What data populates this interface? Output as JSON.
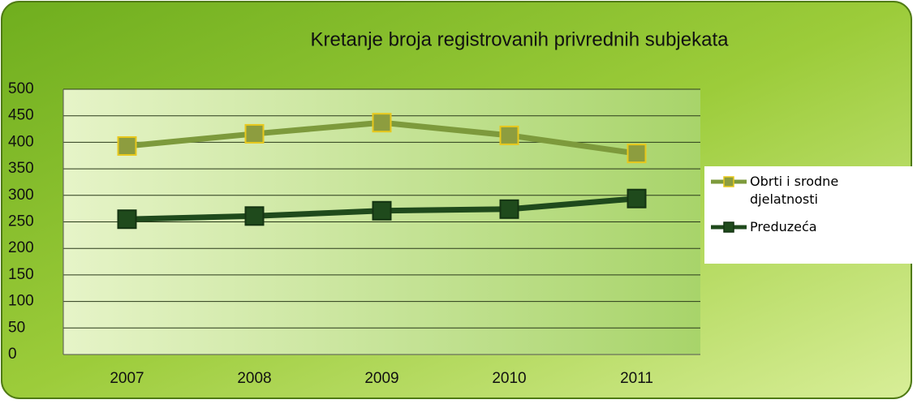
{
  "chart_data": {
    "type": "line",
    "title": "Kretanje broja registrovanih privrednih subjekata",
    "categories": [
      "2007",
      "2008",
      "2009",
      "2010",
      "2011"
    ],
    "series": [
      {
        "name": "Obrti i srodne djelatnosti",
        "color": "#7d9a3c",
        "marker_color": "#8d9d3f",
        "marker_edge": "#e8c81c",
        "values": [
          393,
          416,
          437,
          413,
          379
        ]
      },
      {
        "name": "Preduzeća",
        "color": "#1f4a1c",
        "marker_color": "#1f4a1c",
        "marker_edge": "#143412",
        "values": [
          255,
          261,
          271,
          274,
          294
        ]
      }
    ],
    "ylim": [
      0,
      500
    ],
    "yticks": [
      0,
      50,
      100,
      150,
      200,
      250,
      300,
      350,
      400,
      450,
      500
    ],
    "grid": true,
    "legend": "right"
  }
}
